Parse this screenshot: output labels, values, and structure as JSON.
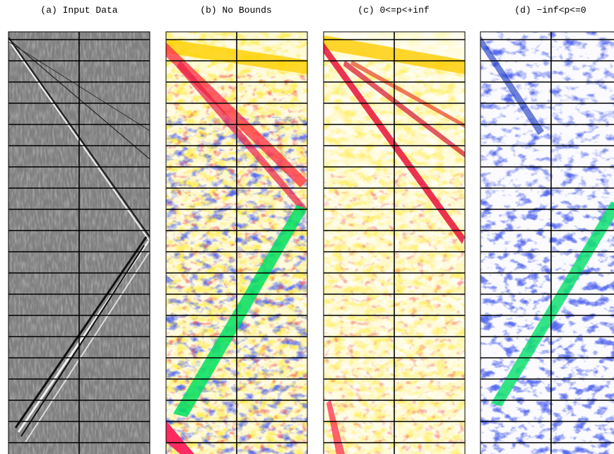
{
  "panels": [
    {
      "title": "(a) Input Data"
    },
    {
      "title": "(b) No Bounds"
    },
    {
      "title": "(c) 0<=p<+inf"
    },
    {
      "title": "(d) −inf<p<=0"
    }
  ]
}
